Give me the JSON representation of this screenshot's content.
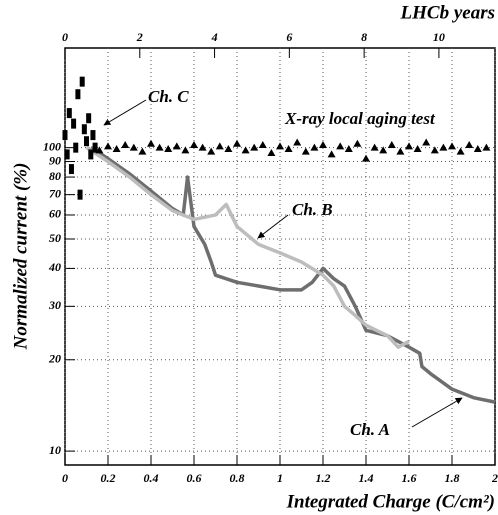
{
  "chart_data": {
    "type": "line",
    "x_label": "Integrated Charge (C/cm²)",
    "y_label": "Normalized current (%)",
    "x2_label": "LHCb years",
    "xlim": [
      0,
      2
    ],
    "xticks": [
      0,
      0.2,
      0.4,
      0.6,
      0.8,
      1,
      1.2,
      1.4,
      1.6,
      1.8,
      2
    ],
    "x2lim": [
      0,
      11.5
    ],
    "x2ticks": [
      0,
      2,
      4,
      6,
      8,
      10
    ],
    "ylim": [
      9,
      213
    ],
    "yticks": [
      10,
      20,
      30,
      40,
      50,
      60,
      70,
      80,
      90,
      100
    ],
    "log_y": true,
    "grid": true,
    "series": [
      {
        "name": "Ch. A",
        "color": "#6e6e6e",
        "marker": "line",
        "x": [
          0.12,
          0.2,
          0.3,
          0.4,
          0.5,
          0.55,
          0.57,
          0.6,
          0.65,
          0.68,
          0.7,
          0.8,
          0.9,
          1.0,
          1.1,
          1.15,
          1.2,
          1.25,
          1.3,
          1.35,
          1.4,
          1.5,
          1.6,
          1.65,
          1.66,
          1.7,
          1.8,
          1.9,
          2.0
        ],
        "values": [
          100,
          92,
          82,
          72,
          63,
          60,
          80,
          55,
          48,
          42,
          38,
          36,
          35,
          34,
          34,
          36,
          40,
          37,
          35,
          30,
          25,
          24,
          22,
          21,
          19,
          18,
          16,
          15,
          14.5
        ]
      },
      {
        "name": "Ch. B",
        "color": "#bdbdbd",
        "marker": "line",
        "x": [
          0.1,
          0.2,
          0.3,
          0.4,
          0.5,
          0.6,
          0.7,
          0.75,
          0.8,
          0.9,
          1.0,
          1.1,
          1.2,
          1.25,
          1.3,
          1.35,
          1.4,
          1.5,
          1.55,
          1.6
        ],
        "values": [
          100,
          90,
          80,
          70,
          62,
          58,
          60,
          65,
          55,
          48,
          45,
          42,
          38,
          35,
          30,
          28,
          26,
          24,
          22,
          23
        ]
      },
      {
        "name": "Ch. C",
        "color": "#000000",
        "marker": "dot",
        "x": [
          0.0,
          0.01,
          0.02,
          0.03,
          0.04,
          0.05,
          0.06,
          0.07,
          0.08,
          0.09,
          0.1,
          0.11,
          0.12,
          0.13,
          0.14
        ],
        "values": [
          110,
          95,
          130,
          85,
          120,
          100,
          150,
          70,
          165,
          115,
          105,
          125,
          95,
          110,
          100
        ]
      },
      {
        "name": "X-ray local aging test",
        "color": "#000000",
        "marker": "triangle",
        "x": [
          0.16,
          0.2,
          0.24,
          0.28,
          0.32,
          0.36,
          0.4,
          0.44,
          0.48,
          0.52,
          0.56,
          0.6,
          0.64,
          0.68,
          0.72,
          0.76,
          0.8,
          0.84,
          0.88,
          0.92,
          0.96,
          1.0,
          1.04,
          1.08,
          1.12,
          1.16,
          1.2,
          1.24,
          1.28,
          1.32,
          1.36,
          1.4,
          1.44,
          1.48,
          1.52,
          1.56,
          1.6,
          1.64,
          1.68,
          1.72,
          1.76,
          1.8,
          1.84,
          1.88,
          1.92,
          1.96
        ],
        "values": [
          98,
          101,
          99,
          102,
          100,
          97,
          103,
          100,
          99,
          101,
          98,
          102,
          100,
          97,
          101,
          99,
          103,
          98,
          100,
          102,
          96,
          101,
          99,
          104,
          97,
          100,
          102,
          95,
          101,
          99,
          103,
          92,
          100,
          98,
          102,
          97,
          101,
          99,
          104,
          98,
          100,
          101,
          97,
          102,
          99,
          100
        ]
      }
    ]
  }
}
